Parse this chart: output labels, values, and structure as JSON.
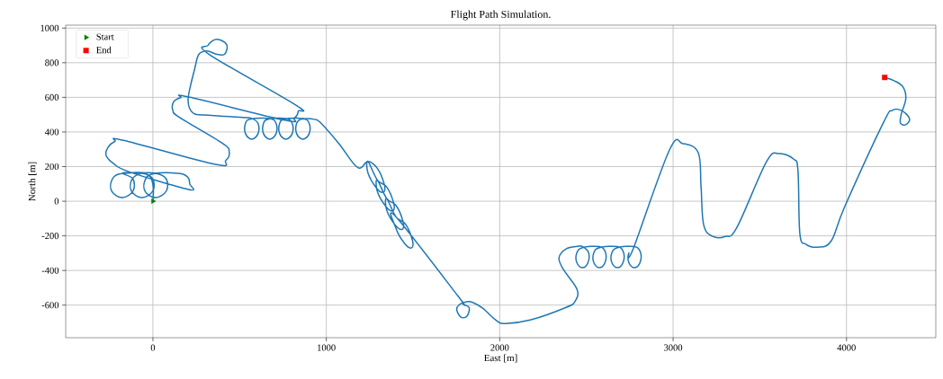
{
  "chart_data": {
    "type": "line",
    "title": "Flight Path Simulation.",
    "xlabel": "East [m]",
    "ylabel": "North [m]",
    "xlim": [
      -503,
      4515
    ],
    "ylim": [
      -788,
      1017
    ],
    "xticks": [
      0,
      1000,
      2000,
      3000,
      4000
    ],
    "yticks": [
      -600,
      -400,
      -200,
      0,
      200,
      400,
      600,
      800,
      1000
    ],
    "grid": true,
    "legend": "top left",
    "series": [
      {
        "color": "#1f77b4",
        "x": [
          0,
          2,
          -15,
          -60,
          -120,
          -176,
          -116,
          -114,
          -176,
          -236,
          -238,
          -191,
          -62,
          -2,
          0,
          -62,
          -122,
          -124,
          -77,
          16,
          76,
          78,
          16,
          -44,
          -46,
          1,
          145,
          200,
          212,
          205,
          -140,
          -230,
          -270,
          -260,
          -220,
          -170,
          360,
          420,
          440,
          400,
          155,
          115,
          120,
          160,
          207,
          760,
          815,
          838,
          825,
          326,
          318,
          368,
          425,
          414,
          370,
          311,
          264,
          240,
          215,
          203,
          210,
          240,
          300,
          520,
          570,
          606,
          606,
          570,
          534,
          534,
          565,
          674,
          710,
          710,
          674,
          638,
          638,
          669,
          767,
          803,
          803,
          767,
          731,
          731,
          762,
          865,
          901,
          901,
          865,
          829,
          829,
          860,
          933,
          970,
          1073,
          1180,
          1240,
          1294,
          1334,
          1330,
          1290,
          1240,
          1240,
          1294,
          1348,
          1388,
          1384,
          1344,
          1294,
          1294,
          1348,
          1402,
          1442,
          1438,
          1398,
          1348,
          1348,
          1402,
          1456,
          1496,
          1492,
          1452,
          1402,
          1402,
          1762,
          1788,
          1824,
          1810,
          1775,
          1752,
          1770,
          1810,
          1850,
          1902,
          1984,
          2036,
          2176,
          2383,
          2435,
          2446,
          2368,
          2342,
          2383,
          2451,
          2477,
          2512,
          2509,
          2477,
          2445,
          2444,
          2477,
          2575,
          2610,
          2607,
          2575,
          2543,
          2542,
          2575,
          2679,
          2714,
          2711,
          2679,
          2647,
          2646,
          2679,
          2777,
          2812,
          2809,
          2777,
          2745,
          2744,
          2770,
          2979,
          3057,
          3145,
          3161,
          3176,
          3228,
          3301,
          3368,
          3539,
          3611,
          3694,
          3720,
          3731,
          3767,
          3834,
          3912,
          3990,
          4212,
          4264,
          4316,
          4363,
          4342,
          4311,
          4316,
          4342,
          4326,
          4275,
          4220
        ],
        "values": [
          0,
          80,
          140,
          165,
          165,
          161,
          130,
          60,
          21,
          55,
          120,
          158,
          161,
          130,
          60,
          21,
          55,
          120,
          158,
          161,
          130,
          60,
          21,
          55,
          120,
          158,
          161,
          140,
          100,
          68,
          171,
          220,
          265,
          310,
          345,
          352,
          213,
          235,
          285,
          335,
          483,
          525,
          575,
          598,
          602,
          468,
          480,
          520,
          555,
          847,
          900,
          935,
          905,
          850,
          848,
          868,
          847,
          760,
          660,
          590,
          540,
          505,
          498,
          484,
          478,
          450,
          390,
          358,
          390,
          450,
          475,
          478,
          450,
          390,
          358,
          390,
          450,
          475,
          478,
          450,
          390,
          358,
          390,
          450,
          475,
          478,
          450,
          390,
          358,
          390,
          450,
          475,
          473,
          450,
          332,
          195,
          230,
          190,
          98,
          52,
          76,
          164,
          230,
          123,
          83,
          -9,
          -55,
          -31,
          57,
          123,
          16,
          -24,
          -116,
          -162,
          -138,
          -50,
          16,
          -91,
          -131,
          -223,
          -269,
          -245,
          -157,
          -91,
          -551,
          -592,
          -615,
          -665,
          -668,
          -625,
          -595,
          -580,
          -587,
          -618,
          -691,
          -706,
          -686,
          -613,
          -577,
          -509,
          -395,
          -327,
          -275,
          -260,
          -262,
          -295,
          -355,
          -384,
          -355,
          -300,
          -268,
          -262,
          -295,
          -355,
          -384,
          -355,
          -300,
          -268,
          -262,
          -295,
          -355,
          -384,
          -355,
          -300,
          -268,
          -262,
          -295,
          -355,
          -384,
          -355,
          -300,
          -275,
          296,
          332,
          280,
          88,
          -135,
          -203,
          -203,
          -151,
          229,
          275,
          244,
          177,
          -187,
          -249,
          -265,
          -229,
          -31,
          452,
          525,
          525,
          478,
          442,
          452,
          504,
          592,
          660,
          696,
          715
        ]
      },
      {
        "type": "scatter",
        "name": "Start",
        "color": "#008000",
        "marker": "triangle",
        "x": [
          0
        ],
        "values": [
          0
        ]
      },
      {
        "type": "scatter",
        "name": "End",
        "color": "#ff0000",
        "marker": "square",
        "x": [
          4220
        ],
        "values": [
          715
        ]
      }
    ]
  }
}
